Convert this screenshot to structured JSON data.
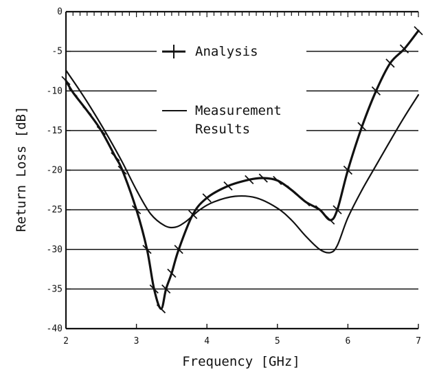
{
  "chart_data": {
    "type": "line",
    "title": "",
    "xlabel": "Frequency [GHz]",
    "ylabel": "Return Loss [dB]",
    "xlim": [
      2,
      7
    ],
    "ylim": [
      -40,
      0
    ],
    "x_ticks": [
      2,
      3,
      4,
      5,
      6,
      7
    ],
    "y_ticks": [
      0,
      -5,
      -10,
      -15,
      -20,
      -25,
      -30,
      -35,
      -40
    ],
    "grid": "horizontal lines at every 5 dB",
    "legend": "top-center",
    "series": [
      {
        "name": "Analysis",
        "marker": "cross",
        "color": "#111111",
        "x": [
          2.0,
          2.1,
          2.3,
          2.5,
          2.7,
          2.8,
          3.0,
          3.15,
          3.25,
          3.35,
          3.42,
          3.5,
          3.6,
          3.8,
          4.0,
          4.3,
          4.6,
          4.8,
          5.0,
          5.2,
          5.4,
          5.6,
          5.75,
          5.85,
          6.0,
          6.2,
          6.4,
          6.6,
          6.8,
          7.0
        ],
        "y": [
          -8.7,
          -10.2,
          -12.5,
          -15.0,
          -18.3,
          -20.0,
          -25.0,
          -30.0,
          -35.0,
          -37.5,
          -35.0,
          -33.0,
          -30.0,
          -25.6,
          -23.5,
          -22.0,
          -21.2,
          -21.0,
          -21.3,
          -22.5,
          -24.0,
          -25.0,
          -26.3,
          -25.0,
          -20.0,
          -14.5,
          -10.0,
          -6.5,
          -4.7,
          -2.4
        ]
      },
      {
        "name": "Measurement Results",
        "marker": "none",
        "color": "#111111",
        "x": [
          2.0,
          2.2,
          2.4,
          2.6,
          2.8,
          3.0,
          3.2,
          3.4,
          3.55,
          3.7,
          3.9,
          4.1,
          4.4,
          4.7,
          5.0,
          5.2,
          5.4,
          5.6,
          5.75,
          5.85,
          6.0,
          6.2,
          6.4,
          6.6,
          6.8,
          7.0
        ],
        "y": [
          -7.4,
          -10.0,
          -12.8,
          -15.8,
          -19.0,
          -22.5,
          -25.5,
          -27.0,
          -27.2,
          -26.5,
          -25.0,
          -24.0,
          -23.3,
          -23.5,
          -24.8,
          -26.3,
          -28.3,
          -30.0,
          -30.4,
          -29.5,
          -26.0,
          -22.5,
          -19.4,
          -16.3,
          -13.3,
          -10.5
        ]
      }
    ]
  },
  "legend": {
    "analysis_label": "Analysis",
    "measurement_label_line1": "Measurement",
    "measurement_label_line2": "Results"
  }
}
